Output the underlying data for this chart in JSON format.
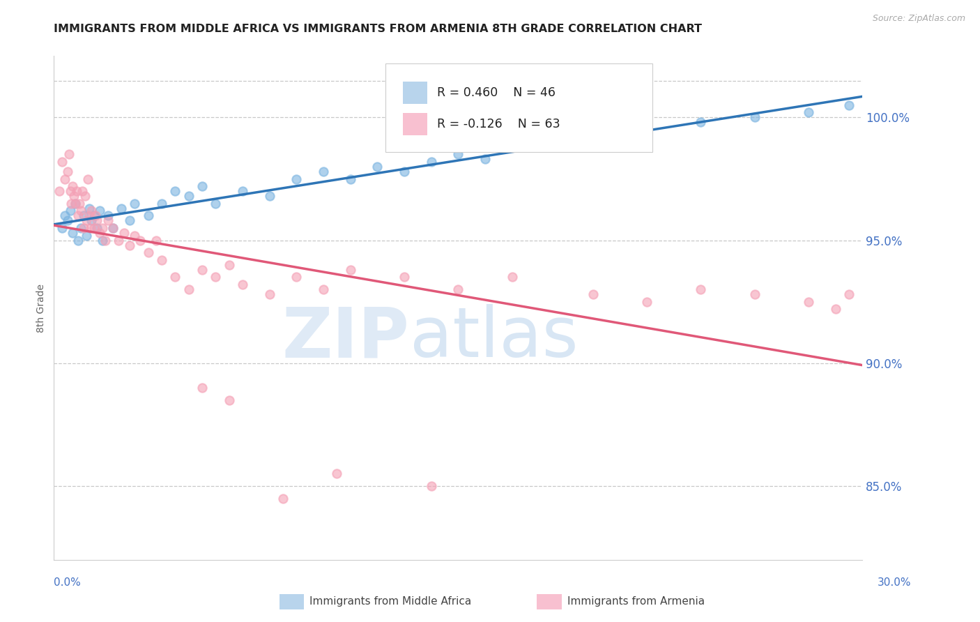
{
  "title": "IMMIGRANTS FROM MIDDLE AFRICA VS IMMIGRANTS FROM ARMENIA 8TH GRADE CORRELATION CHART",
  "source": "Source: ZipAtlas.com",
  "ylabel": "8th Grade",
  "xlim": [
    0.0,
    30.0
  ],
  "ylim": [
    82.0,
    102.5
  ],
  "yticks": [
    85.0,
    90.0,
    95.0,
    100.0
  ],
  "ytick_labels": [
    "85.0%",
    "90.0%",
    "95.0%",
    "100.0%"
  ],
  "top_dashed_y": 101.5,
  "R_blue": 0.46,
  "N_blue": 46,
  "R_pink": -0.126,
  "N_pink": 63,
  "blue_dot_color": "#7ab3e0",
  "pink_dot_color": "#f4a0b5",
  "blue_line_color": "#2e75b6",
  "pink_line_color": "#e05878",
  "legend_box_blue": "#b8d4ec",
  "legend_box_pink": "#f8c0d0",
  "legend_label_blue": "Immigrants from Middle Africa",
  "legend_label_pink": "Immigrants from Armenia",
  "axis_tick_color": "#4472c4",
  "grid_color": "#c8c8c8",
  "title_color": "#222222",
  "blue_scatter_x": [
    0.3,
    0.4,
    0.5,
    0.6,
    0.7,
    0.8,
    0.9,
    1.0,
    1.1,
    1.2,
    1.3,
    1.4,
    1.5,
    1.6,
    1.7,
    1.8,
    2.0,
    2.2,
    2.5,
    2.8,
    3.0,
    3.5,
    4.0,
    4.5,
    5.0,
    5.5,
    6.0,
    7.0,
    8.0,
    9.0,
    10.0,
    11.0,
    12.0,
    13.0,
    14.0,
    15.0,
    16.0,
    17.0,
    18.0,
    19.0,
    20.0,
    22.0,
    24.0,
    26.0,
    28.0,
    29.5
  ],
  "blue_scatter_y": [
    95.5,
    96.0,
    95.8,
    96.2,
    95.3,
    96.5,
    95.0,
    95.5,
    96.0,
    95.2,
    96.3,
    95.8,
    96.0,
    95.5,
    96.2,
    95.0,
    96.0,
    95.5,
    96.3,
    95.8,
    96.5,
    96.0,
    96.5,
    97.0,
    96.8,
    97.2,
    96.5,
    97.0,
    96.8,
    97.5,
    97.8,
    97.5,
    98.0,
    97.8,
    98.2,
    98.5,
    98.3,
    98.8,
    99.0,
    98.8,
    99.2,
    99.5,
    99.8,
    100.0,
    100.2,
    100.5
  ],
  "pink_scatter_x": [
    0.2,
    0.3,
    0.4,
    0.5,
    0.55,
    0.6,
    0.65,
    0.7,
    0.75,
    0.8,
    0.85,
    0.9,
    0.95,
    1.0,
    1.05,
    1.1,
    1.15,
    1.2,
    1.25,
    1.3,
    1.35,
    1.4,
    1.5,
    1.55,
    1.6,
    1.7,
    1.8,
    1.9,
    2.0,
    2.2,
    2.4,
    2.6,
    2.8,
    3.0,
    3.2,
    3.5,
    3.8,
    4.0,
    4.5,
    5.0,
    5.5,
    6.0,
    6.5,
    7.0,
    8.0,
    9.0,
    10.0,
    11.0,
    13.0,
    15.0,
    17.0,
    20.0,
    22.0,
    24.0,
    26.0,
    28.0,
    29.0,
    29.5,
    5.5,
    6.5,
    8.5,
    10.5,
    14.0
  ],
  "pink_scatter_y": [
    97.0,
    98.2,
    97.5,
    97.8,
    98.5,
    97.0,
    96.5,
    97.2,
    96.8,
    96.5,
    97.0,
    96.0,
    96.5,
    96.2,
    97.0,
    95.5,
    96.8,
    95.8,
    97.5,
    96.0,
    95.5,
    96.2,
    95.5,
    96.0,
    95.8,
    95.3,
    95.5,
    95.0,
    95.8,
    95.5,
    95.0,
    95.3,
    94.8,
    95.2,
    95.0,
    94.5,
    95.0,
    94.2,
    93.5,
    93.0,
    93.8,
    93.5,
    94.0,
    93.2,
    92.8,
    93.5,
    93.0,
    93.8,
    93.5,
    93.0,
    93.5,
    92.8,
    92.5,
    93.0,
    92.8,
    92.5,
    92.2,
    92.8,
    89.0,
    88.5,
    84.5,
    85.5,
    85.0
  ]
}
